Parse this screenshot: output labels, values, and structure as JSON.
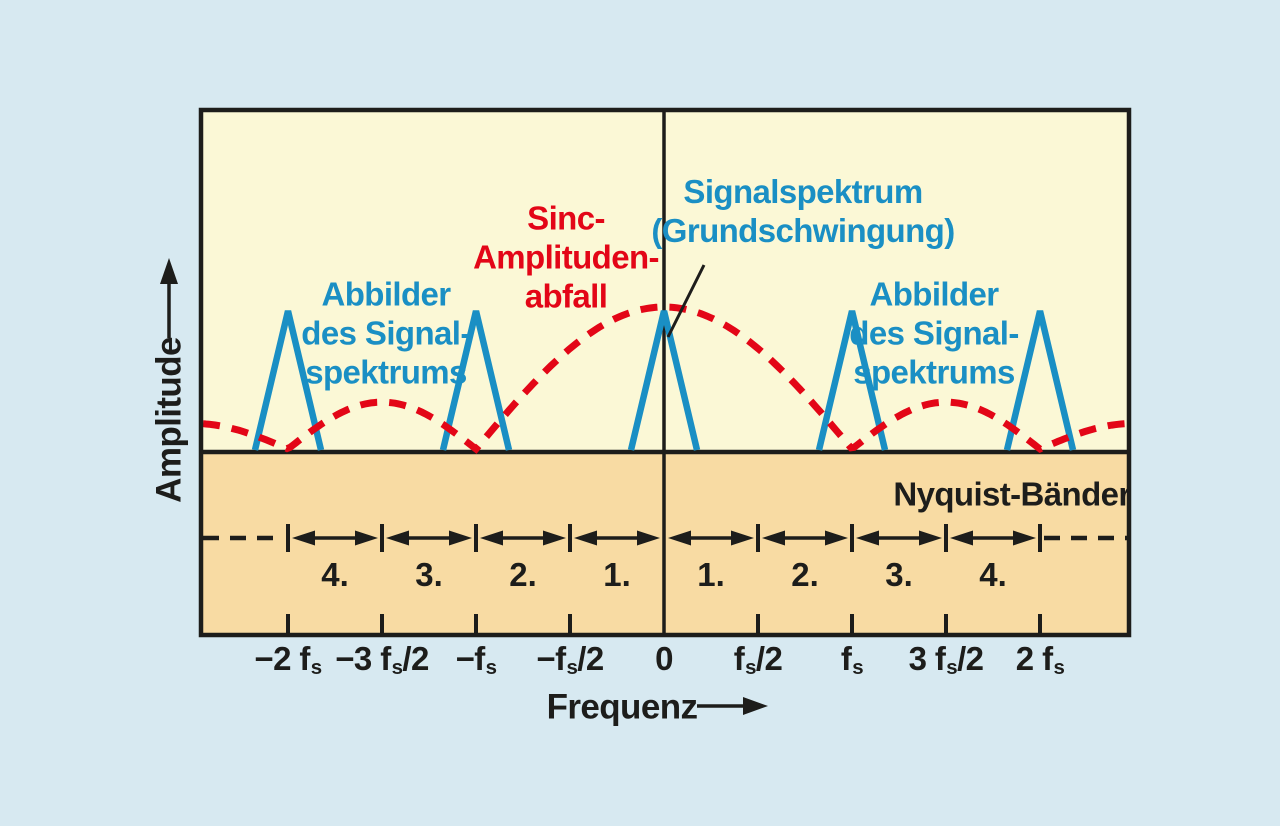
{
  "colors": {
    "background": "#d7e9f1",
    "panel_upper": "#fbf8d6",
    "panel_lower": "#f8dba3",
    "line_black": "#1d1d1b",
    "signal_blue": "#1a8fc4",
    "sinc_red": "#e30617"
  },
  "labels": {
    "sinc": {
      "lines": [
        "Sinc-",
        "Amplituden-",
        "abfall"
      ]
    },
    "signal_spectrum": {
      "lines": [
        "Signalspektrum",
        "(Grundschwingung)"
      ]
    },
    "images_left": {
      "lines": [
        "Abbilder",
        "des Signal-",
        "spektrums"
      ]
    },
    "images_right": {
      "lines": [
        "Abbilder",
        "des Signal-",
        "spektrums"
      ]
    },
    "nyquist_bands": "Nyquist-Bänder",
    "amplitude_axis": "Amplitude",
    "frequency_axis": "Frequenz"
  },
  "chart_data": {
    "type": "diagram",
    "description": "Spectrum of a sampled signal: signal spectrum (fundamental) at 0, spectral images at multiples of the sampling frequency fs, dashed sinc amplitude roll-off envelope with zeros at multiples of fs, and numbered Nyquist bands of width fs/2.",
    "x_axis": {
      "label": "Frequenz",
      "ticks": [
        {
          "pre": "−2 f",
          "sub": "s",
          "post": "",
          "u": -4
        },
        {
          "pre": "−3 f",
          "sub": "s",
          "post": "/2",
          "u": -3
        },
        {
          "pre": "−f",
          "sub": "s",
          "post": "",
          "u": -2
        },
        {
          "pre": "−f",
          "sub": "s",
          "post": "/2",
          "u": -1
        },
        {
          "pre": "0",
          "sub": "",
          "post": "",
          "u": 0
        },
        {
          "pre": "f",
          "sub": "s",
          "post": "/2",
          "u": 1
        },
        {
          "pre": "f",
          "sub": "s",
          "post": "",
          "u": 2
        },
        {
          "pre": "3 f",
          "sub": "s",
          "post": "/2",
          "u": 3
        },
        {
          "pre": "2 f",
          "sub": "s",
          "post": "",
          "u": 4
        }
      ]
    },
    "y_axis": {
      "label": "Amplitude"
    },
    "spectral_peaks_fs": [
      -2,
      -1,
      0,
      1,
      2
    ],
    "sinc_envelope": {
      "zeros_fs": [
        -2,
        -1,
        1,
        2
      ],
      "peak_at_fs": 0,
      "lobe_heights_rel": [
        1.0,
        0.33,
        0.18
      ]
    },
    "nyquist_bands": {
      "boundaries_fs2": [
        -4,
        -3,
        -2,
        -1,
        0,
        1,
        2,
        3,
        4
      ],
      "band_numbers": [
        "4.",
        "3.",
        "2.",
        "1.",
        "1.",
        "2.",
        "3.",
        "4."
      ]
    }
  }
}
